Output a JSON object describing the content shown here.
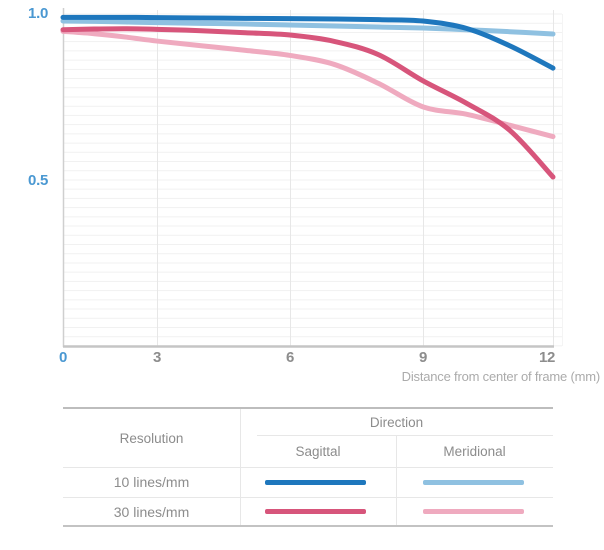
{
  "colors": {
    "blue_dark": "#1e77bd",
    "blue_light": "#8fc1e1",
    "pink_dark": "#d7557b",
    "pink_light": "#efaabf",
    "axis_accent": "#4a98d2",
    "tick_gray": "#8d8d8d",
    "caption_gray": "#ababab",
    "table_text": "#8c8c8c"
  },
  "chart_data": {
    "type": "line",
    "title": "",
    "xlabel": "Distance from center of frame (mm)",
    "ylabel": "",
    "xlim": [
      0,
      12
    ],
    "ylim": [
      0,
      1.0
    ],
    "grid": true,
    "legend_position": "bottom-table",
    "x": [
      0,
      1,
      2,
      3,
      4,
      5,
      6,
      7,
      8,
      9,
      10,
      11,
      12
    ],
    "x_ticks": [
      {
        "label": "0",
        "value": 0,
        "accent": true
      },
      {
        "label": "3",
        "value": 3,
        "accent": false
      },
      {
        "label": "6",
        "value": 6,
        "accent": false
      },
      {
        "label": "9",
        "value": 9,
        "accent": false
      },
      {
        "label": "12",
        "value": 12,
        "accent": false
      }
    ],
    "y_ticks": [
      {
        "label": "1.0",
        "value": 1.0
      },
      {
        "label": "0.5",
        "value": 0.5
      }
    ],
    "series": [
      {
        "name": "10 lines/mm Meridional",
        "color_key": "blue_light",
        "values": [
          0.979,
          0.978,
          0.976,
          0.974,
          0.972,
          0.97,
          0.967,
          0.964,
          0.961,
          0.958,
          0.953,
          0.947,
          0.94
        ]
      },
      {
        "name": "10 lines/mm Sagittal",
        "color_key": "blue_dark",
        "values": [
          0.99,
          0.99,
          0.99,
          0.989,
          0.988,
          0.987,
          0.986,
          0.985,
          0.983,
          0.979,
          0.957,
          0.905,
          0.838
        ]
      },
      {
        "name": "30 lines/mm Meridional",
        "color_key": "pink_light",
        "values": [
          0.948,
          0.941,
          0.931,
          0.919,
          0.905,
          0.891,
          0.876,
          0.849,
          0.792,
          0.722,
          0.7,
          0.667,
          0.633
        ]
      },
      {
        "name": "30 lines/mm Sagittal",
        "color_key": "pink_dark",
        "values": [
          0.953,
          0.955,
          0.956,
          0.954,
          0.95,
          0.944,
          0.937,
          0.918,
          0.878,
          0.8,
          0.733,
          0.652,
          0.512
        ]
      }
    ]
  },
  "table": {
    "col_resolution": "Resolution",
    "col_direction": "Direction",
    "col_sagittal": "Sagittal",
    "col_meridional": "Meridional",
    "rows": [
      {
        "label": "10 lines/mm",
        "sagittal_color": "blue_dark",
        "meridional_color": "blue_light"
      },
      {
        "label": "30 lines/mm",
        "sagittal_color": "pink_dark",
        "meridional_color": "pink_light"
      }
    ]
  }
}
